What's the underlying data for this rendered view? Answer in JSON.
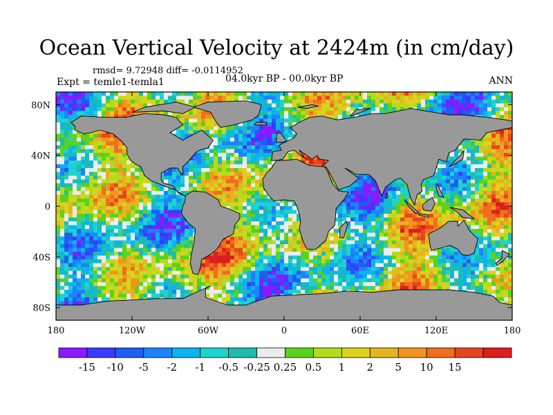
{
  "figure": {
    "title": "Ocean Vertical Velocity at 2424m (in cm/day)",
    "stats": "rmsd= 9.72948 diff= -0.0114952",
    "experiment": "Expt = temle1-temla1",
    "period": "04.0kyr BP - 00.0kyr BP",
    "season": "ANN"
  },
  "map": {
    "projection": "cylindrical-equidistant",
    "lon_range": [
      -180,
      180
    ],
    "lat_range": [
      -90,
      90
    ],
    "land_color": "#999999",
    "coast_color": "#000000",
    "lon_ticks": [
      {
        "value": -180,
        "label": "180"
      },
      {
        "value": -120,
        "label": "120W"
      },
      {
        "value": -60,
        "label": "60W"
      },
      {
        "value": 0,
        "label": "0"
      },
      {
        "value": 60,
        "label": "60E"
      },
      {
        "value": 120,
        "label": "120E"
      },
      {
        "value": 180,
        "label": "180"
      }
    ],
    "lat_ticks": [
      {
        "value": 80,
        "label": "80N"
      },
      {
        "value": 40,
        "label": "40N"
      },
      {
        "value": 0,
        "label": "0"
      },
      {
        "value": -40,
        "label": "40S"
      },
      {
        "value": -80,
        "label": "80S"
      }
    ]
  },
  "colorbar": {
    "colors": [
      "#8c1aff",
      "#3b3bff",
      "#1e5ef0",
      "#1e82ff",
      "#0ab4f0",
      "#1ed2d2",
      "#1ebcae",
      "#ececec",
      "#5ad21e",
      "#b4dc1e",
      "#dcd21e",
      "#e6b41e",
      "#f0961e",
      "#f06e1e",
      "#e6461e",
      "#dc1e1e"
    ],
    "labels": [
      "-15",
      "-10",
      "-5",
      "-2",
      "-1",
      "-0.5",
      "-0.25",
      "0.25",
      "0.5",
      "1",
      "2",
      "5",
      "10",
      "15"
    ]
  }
}
